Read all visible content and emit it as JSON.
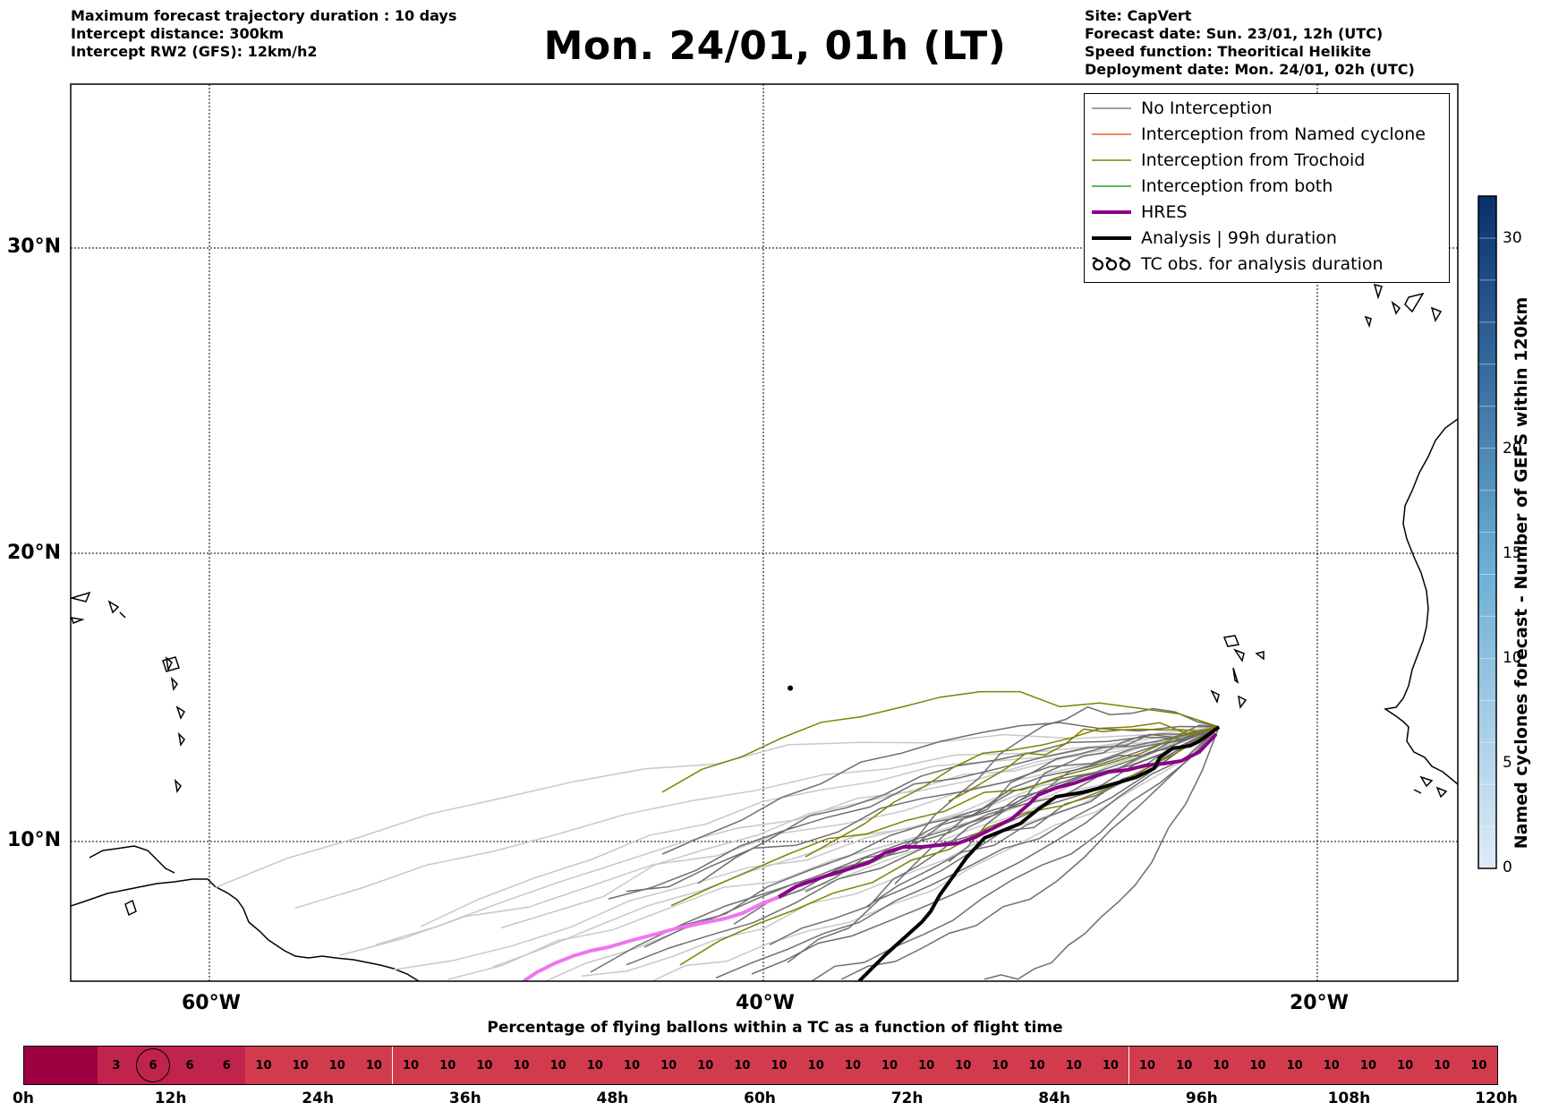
{
  "header": {
    "left": [
      "Maximum forecast trajectory duration : 10 days",
      "Intercept distance: 300km",
      "Intercept RW2 (GFS):  12km/h2"
    ],
    "title": "Mon. 24/01, 01h (LT)",
    "right": [
      "Site: CapVert",
      "Forecast date: Sun. 23/01, 12h (UTC)",
      "Speed function: Theoritical Helikite",
      "Deployment date: Mon. 24/01, 02h (UTC)"
    ]
  },
  "map": {
    "lon_range": [
      -65,
      15
    ],
    "lat_range": [
      5,
      35
    ],
    "lat_ticks": [
      "30°N",
      "20°N",
      "10°N"
    ],
    "lon_ticks": [
      "60°W",
      "40°W",
      "20°W"
    ],
    "launch_site": {
      "lon": -23.5,
      "lat": 14.8
    }
  },
  "legend": [
    {
      "label": "No Interception",
      "color": "#808080",
      "style": "thin"
    },
    {
      "label": "Interception from Named cyclone",
      "color": "#e8622c",
      "style": "thin"
    },
    {
      "label": "Interception from Trochoid",
      "color": "#808000",
      "style": "thin"
    },
    {
      "label": "Interception from both",
      "color": "#2ca02c",
      "style": "thin"
    },
    {
      "label": "HRES",
      "color": "#8b008b",
      "style": "thick"
    },
    {
      "label": "Analysis | 99h duration",
      "color": "#000000",
      "style": "thick"
    },
    {
      "label": "TC obs. for analysis duration",
      "color": "#000000",
      "style": "symbol"
    }
  ],
  "colorbar": {
    "label": "Named cyclones forecast - Number of GEFS within 120km",
    "ticks": [
      "0",
      "5",
      "10",
      "15",
      "20",
      "30"
    ],
    "min": 0,
    "max": 32
  },
  "time_bar": {
    "title": "Percentage of flying ballons within a TC as a function of flight time",
    "cells": [
      "",
      "",
      "3",
      "6",
      "6",
      "6",
      "10",
      "10",
      "10",
      "10",
      "10",
      "10",
      "10",
      "10",
      "10",
      "10",
      "10",
      "10",
      "10",
      "10",
      "10",
      "10",
      "10",
      "10",
      "10",
      "10",
      "10",
      "10",
      "10",
      "10",
      "10",
      "10",
      "10",
      "10",
      "10",
      "10",
      "10",
      "10",
      "10",
      "10"
    ],
    "labels": [
      "0h",
      "12h",
      "24h",
      "36h",
      "48h",
      "60h",
      "72h",
      "84h",
      "96h",
      "108h",
      "120h"
    ],
    "marked_cell_index": 3,
    "colors": {
      "dark": "#9e0142",
      "mid": "#c0234c",
      "light": "#d23b4e"
    }
  }
}
